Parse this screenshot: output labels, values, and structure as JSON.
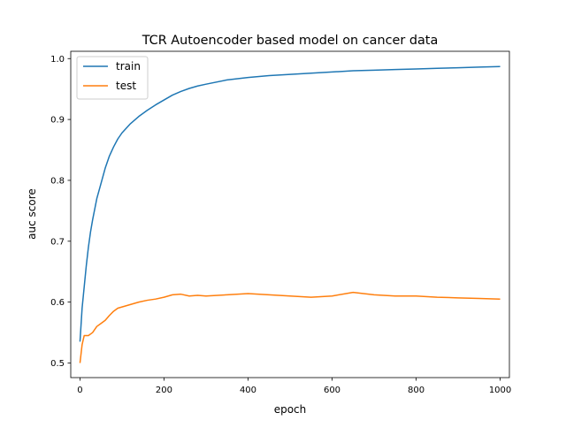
{
  "chart_data": {
    "type": "line",
    "title": "TCR Autoencoder based model on cancer data",
    "xlabel": "epoch",
    "ylabel": "auc score",
    "xlim": [
      -22,
      1022
    ],
    "ylim": [
      0.476,
      1.012
    ],
    "x_ticks": [
      0,
      200,
      400,
      600,
      800,
      1000
    ],
    "y_ticks": [
      0.5,
      0.6,
      0.7,
      0.8,
      0.9,
      1.0
    ],
    "x_tick_labels": [
      "0",
      "200",
      "400",
      "600",
      "800",
      "1000"
    ],
    "y_tick_labels": [
      "0.5",
      "0.6",
      "0.7",
      "0.8",
      "0.9",
      "1.0"
    ],
    "grid": false,
    "legend_position": "top-left",
    "series": [
      {
        "name": "train",
        "color": "#1f77b4",
        "x": [
          0,
          5,
          10,
          15,
          20,
          25,
          30,
          40,
          50,
          60,
          70,
          80,
          90,
          100,
          120,
          140,
          160,
          180,
          200,
          220,
          240,
          260,
          280,
          300,
          350,
          400,
          450,
          500,
          550,
          600,
          650,
          700,
          750,
          800,
          850,
          900,
          950,
          1000
        ],
        "values": [
          0.535,
          0.59,
          0.625,
          0.66,
          0.69,
          0.715,
          0.735,
          0.77,
          0.795,
          0.82,
          0.84,
          0.855,
          0.868,
          0.878,
          0.893,
          0.905,
          0.915,
          0.924,
          0.932,
          0.94,
          0.946,
          0.951,
          0.955,
          0.958,
          0.965,
          0.969,
          0.972,
          0.974,
          0.976,
          0.978,
          0.98,
          0.981,
          0.982,
          0.983,
          0.984,
          0.985,
          0.986,
          0.987
        ]
      },
      {
        "name": "test",
        "color": "#ff7f0e",
        "x": [
          0,
          5,
          10,
          20,
          30,
          40,
          50,
          60,
          70,
          80,
          90,
          100,
          120,
          140,
          160,
          180,
          200,
          220,
          240,
          260,
          280,
          300,
          350,
          400,
          450,
          500,
          550,
          600,
          650,
          700,
          750,
          800,
          850,
          900,
          950,
          1000
        ],
        "values": [
          0.5,
          0.53,
          0.545,
          0.545,
          0.55,
          0.56,
          0.565,
          0.57,
          0.578,
          0.585,
          0.59,
          0.592,
          0.596,
          0.6,
          0.603,
          0.605,
          0.608,
          0.612,
          0.613,
          0.61,
          0.611,
          0.61,
          0.612,
          0.614,
          0.612,
          0.61,
          0.608,
          0.61,
          0.616,
          0.612,
          0.61,
          0.61,
          0.608,
          0.607,
          0.606,
          0.605
        ]
      }
    ]
  }
}
